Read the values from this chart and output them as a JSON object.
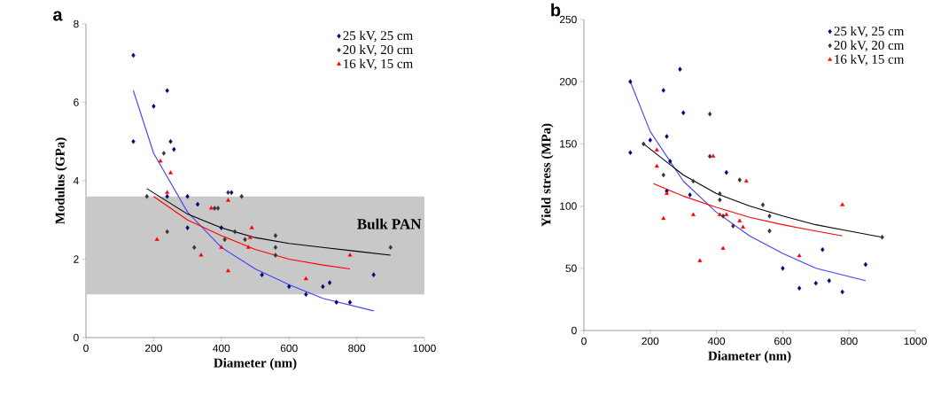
{
  "chart_data": [
    {
      "type": "scatter",
      "annotations": [
        "a"
      ],
      "xlabel": "Diameter (nm)",
      "ylabel": "Modulus (GPa)",
      "xlim": [
        0,
        1000
      ],
      "ylim": [
        0,
        8
      ],
      "xticks": [
        0,
        200,
        400,
        600,
        800,
        1000
      ],
      "yticks": [
        0,
        2,
        4,
        6,
        8
      ],
      "grid": false,
      "legend": "top right",
      "bands": [
        {
          "axis": "y",
          "from": 1.1,
          "to": 3.6,
          "label": "Bulk PAN",
          "color": "#c8c8c8"
        }
      ],
      "series": [
        {
          "name": "25 kV,  25 cm",
          "color": "#000080",
          "marker": "diamond",
          "x": [
            140,
            140,
            200,
            240,
            250,
            260,
            240,
            300,
            300,
            330,
            400,
            430,
            520,
            600,
            650,
            700,
            720,
            740,
            780,
            850
          ],
          "values": [
            7.2,
            5.0,
            5.9,
            6.3,
            5.0,
            4.8,
            3.6,
            3.6,
            2.8,
            3.4,
            2.8,
            3.7,
            1.6,
            1.3,
            1.1,
            1.3,
            1.4,
            0.9,
            0.9,
            1.6
          ]
        },
        {
          "name": "20 kV,  20 cm",
          "color": "#333333",
          "marker": "diamond",
          "x": [
            180,
            230,
            240,
            320,
            380,
            390,
            410,
            420,
            440,
            460,
            470,
            560,
            560,
            560,
            900
          ],
          "values": [
            3.6,
            4.7,
            2.7,
            2.3,
            3.3,
            3.3,
            2.5,
            3.7,
            2.7,
            3.6,
            2.5,
            2.3,
            2.1,
            2.6,
            2.3
          ]
        },
        {
          "name": "16 kV,  15 cm",
          "color": "#ff0000",
          "marker": "triangle",
          "x": [
            210,
            220,
            240,
            250,
            340,
            370,
            400,
            420,
            420,
            480,
            490,
            485,
            650,
            780
          ],
          "values": [
            2.5,
            4.5,
            3.7,
            4.2,
            2.1,
            3.3,
            2.3,
            1.7,
            3.5,
            2.3,
            2.8,
            2.55,
            1.5,
            2.1
          ]
        },
        {
          "type": "line",
          "color": "#4040ff",
          "x": [
            140,
            200,
            300,
            400,
            500,
            600,
            700,
            850
          ],
          "values": [
            6.3,
            4.7,
            3.2,
            2.3,
            1.75,
            1.35,
            1.0,
            0.68
          ]
        },
        {
          "type": "line",
          "color": "#000000",
          "x": [
            180,
            300,
            400,
            500,
            600,
            700,
            800,
            900
          ],
          "values": [
            3.8,
            3.15,
            2.8,
            2.55,
            2.4,
            2.3,
            2.2,
            2.1
          ]
        },
        {
          "type": "line",
          "color": "#ff0000",
          "x": [
            200,
            300,
            400,
            500,
            600,
            700,
            780
          ],
          "values": [
            3.6,
            3.0,
            2.6,
            2.25,
            2.0,
            1.85,
            1.75
          ]
        }
      ]
    },
    {
      "type": "scatter",
      "annotations": [
        "b"
      ],
      "xlabel": "Diameter (nm)",
      "ylabel": "Yield stress (MPa)",
      "xlim": [
        0,
        1000
      ],
      "ylim": [
        0,
        250
      ],
      "xticks": [
        0,
        200,
        400,
        600,
        800,
        1000
      ],
      "yticks": [
        0,
        50,
        100,
        150,
        200,
        250
      ],
      "grid": false,
      "legend": "top right",
      "series": [
        {
          "name": "25 kV,  25 cm",
          "color": "#000080",
          "marker": "diamond",
          "x": [
            140,
            140,
            200,
            240,
            250,
            250,
            260,
            290,
            300,
            320,
            430,
            600,
            650,
            700,
            720,
            740,
            780,
            850
          ],
          "values": [
            200,
            143,
            153,
            193,
            112,
            156,
            136,
            210,
            175,
            109,
            127,
            50,
            34,
            38,
            65,
            40,
            31,
            53
          ]
        },
        {
          "name": "20 kV,  20 cm",
          "color": "#333333",
          "marker": "diamond",
          "x": [
            180,
            240,
            330,
            380,
            380,
            410,
            410,
            470,
            540,
            560,
            420,
            450,
            560,
            900
          ],
          "values": [
            150,
            125,
            120,
            140,
            174,
            110,
            105,
            121,
            101,
            92,
            92,
            84,
            80,
            75
          ]
        },
        {
          "name": "16 kV,  15 cm",
          "color": "#ff0000",
          "marker": "triangle",
          "x": [
            220,
            220,
            240,
            250,
            330,
            350,
            390,
            410,
            420,
            430,
            470,
            480,
            490,
            650,
            780
          ],
          "values": [
            145,
            132,
            90,
            110,
            93,
            56,
            140,
            93,
            66,
            93,
            88,
            83,
            120,
            60,
            101
          ]
        },
        {
          "type": "line",
          "color": "#4040ff",
          "x": [
            140,
            200,
            300,
            400,
            500,
            600,
            700,
            850
          ],
          "values": [
            200,
            160,
            120,
            95,
            76,
            62,
            50,
            40
          ]
        },
        {
          "type": "line",
          "color": "#000000",
          "x": [
            180,
            300,
            400,
            500,
            600,
            700,
            800,
            900
          ],
          "values": [
            150,
            125,
            110,
            100,
            92,
            85,
            80,
            75
          ]
        },
        {
          "type": "line",
          "color": "#ff0000",
          "x": [
            210,
            300,
            400,
            500,
            600,
            700,
            780
          ],
          "values": [
            118,
            108,
            99,
            91,
            85,
            80,
            76
          ]
        }
      ]
    }
  ]
}
